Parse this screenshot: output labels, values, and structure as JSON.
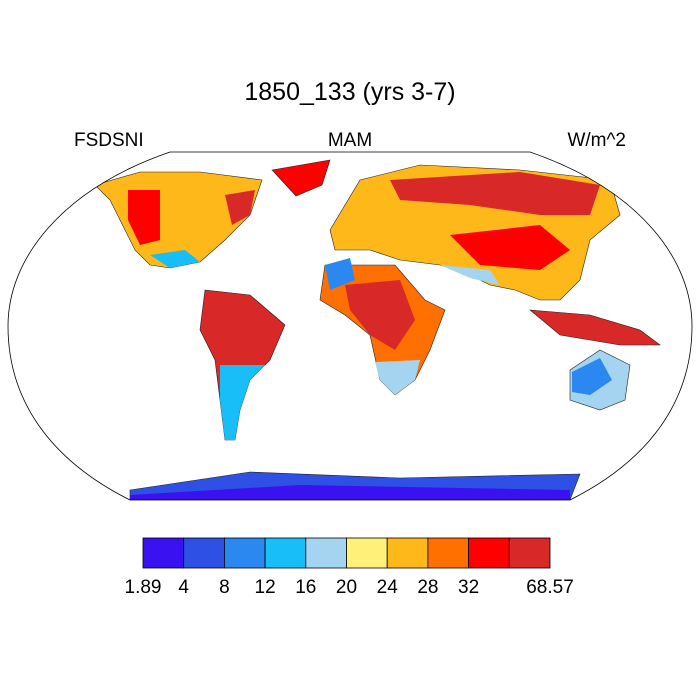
{
  "header": {
    "title": "1850_133 (yrs 3-7)",
    "left_label": "FSDSNI",
    "center_label": "MAM",
    "right_label": "W/m^2"
  },
  "colorbar": {
    "colors": [
      "#3a12f2",
      "#2e50e4",
      "#2a88f0",
      "#18bef7",
      "#a4d4f0",
      "#fff07a",
      "#ffb81a",
      "#ff7000",
      "#ff0000",
      "#d82828"
    ],
    "labels": [
      "1.89",
      "4",
      "8",
      "12",
      "16",
      "20",
      "24",
      "28",
      "32",
      null,
      "68.57"
    ]
  }
}
